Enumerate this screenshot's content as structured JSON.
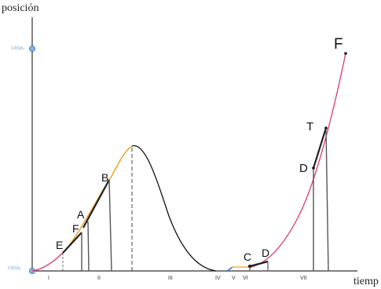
{
  "axes": {
    "y_title": "posición",
    "x_title": "tiemp"
  },
  "home_labels": {
    "home_2": "casa₂",
    "home_1": "casa₁"
  },
  "segments": [
    "I",
    "II",
    "III",
    "IV",
    "V",
    "VI",
    "VII"
  ],
  "points": {
    "E": "E",
    "F_low": "F",
    "A": "A",
    "B": "B",
    "C": "C",
    "D_low": "D",
    "D_high": "D",
    "T": "T",
    "F_high": "F"
  },
  "colors": {
    "position_curve": "#e0357a",
    "speed_up": "#f0a020",
    "return": "#111111",
    "stop": "#3a70c8",
    "home_marker": "#7fb2e5",
    "tangent": "#222222"
  }
}
